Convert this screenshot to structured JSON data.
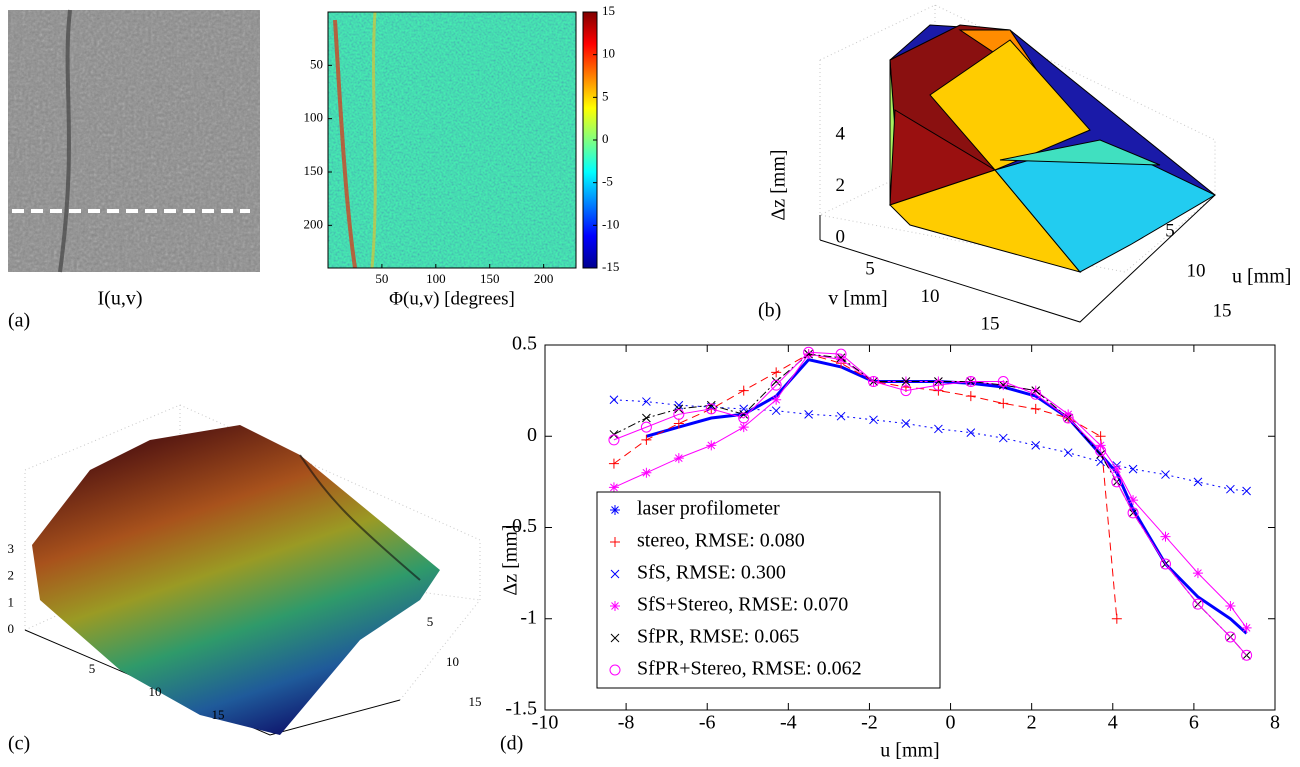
{
  "chart_data": [
    {
      "type": "image",
      "panel": "(a)",
      "xlabel": "I(u,v)"
    },
    {
      "type": "heatmap",
      "xlabel": "Φ(u,v) [degrees]",
      "xlim": [
        0,
        230
      ],
      "ylim": [
        240,
        0
      ],
      "xticks": [
        50,
        100,
        150,
        200
      ],
      "yticks": [
        50,
        100,
        150,
        200
      ],
      "colormap": "jet",
      "clim": [
        -15,
        15
      ],
      "cticks": [
        -15,
        -10,
        -5,
        0,
        5,
        10,
        15
      ]
    },
    {
      "type": "surface3d",
      "panel": "(b)",
      "xlabel": "u [mm]",
      "ylabel": "v [mm]",
      "zlabel": "Δz [mm]",
      "uticks": [
        5,
        10,
        15
      ],
      "vticks": [
        5,
        10,
        15
      ],
      "zticks": [
        0,
        2,
        4
      ]
    },
    {
      "type": "surface3d",
      "panel": "(c)",
      "uticks": [
        5,
        10,
        15
      ],
      "vticks": [
        5,
        10,
        15
      ],
      "zticks": [
        0,
        1,
        2,
        3
      ]
    },
    {
      "type": "line",
      "panel": "(d)",
      "xlabel": "u [mm]",
      "ylabel": "Δz [mm]",
      "xlim": [
        -10,
        8
      ],
      "ylim": [
        -1.5,
        0.5
      ],
      "xticks": [
        -10,
        -8,
        -6,
        -4,
        -2,
        0,
        2,
        4,
        6,
        8
      ],
      "yticks": [
        -1.5,
        -1,
        -0.5,
        0,
        0.5
      ],
      "legend": "lower left",
      "x": [
        -8.3,
        -7.5,
        -6.7,
        -5.9,
        -5.1,
        -4.3,
        -3.5,
        -2.7,
        -1.9,
        -1.1,
        -0.3,
        0.5,
        1.3,
        2.1,
        2.9,
        3.7,
        4.1,
        4.5,
        5.3,
        6.1,
        6.9,
        7.3
      ],
      "series": [
        {
          "name": "laser profilometer",
          "color": "#0000ff",
          "marker": "*",
          "linestyle": "solid",
          "linewidth": 3,
          "show_markers": false,
          "values": [
            null,
            0.0,
            0.05,
            0.1,
            0.12,
            0.22,
            0.42,
            0.38,
            0.3,
            0.3,
            0.3,
            0.29,
            0.27,
            0.22,
            0.1,
            -0.1,
            -0.2,
            -0.4,
            -0.7,
            -0.88,
            -1.0,
            -1.08
          ]
        },
        {
          "name": "stereo, RMSE: 0.080",
          "color": "#ff0000",
          "marker": "+",
          "linestyle": "dashed",
          "linewidth": 1,
          "show_markers": true,
          "values": [
            -0.15,
            -0.02,
            0.07,
            0.15,
            0.25,
            0.35,
            0.45,
            0.4,
            0.3,
            0.27,
            0.25,
            0.22,
            0.18,
            0.15,
            0.1,
            0.0,
            -1.0,
            null,
            null,
            null,
            null,
            null
          ]
        },
        {
          "name": "SfS, RMSE: 0.300",
          "color": "#0000ff",
          "marker": "x",
          "linestyle": "dotted",
          "linewidth": 1,
          "show_markers": true,
          "values": [
            0.2,
            0.19,
            0.17,
            0.16,
            0.15,
            0.14,
            0.12,
            0.11,
            0.09,
            0.07,
            0.04,
            0.02,
            -0.01,
            -0.05,
            -0.09,
            -0.14,
            -0.16,
            -0.18,
            -0.21,
            -0.25,
            -0.29,
            -0.3
          ]
        },
        {
          "name": "SfS+Stereo, RMSE: 0.070",
          "color": "#ff00ff",
          "marker": "*",
          "linestyle": "solid",
          "linewidth": 1,
          "show_markers": true,
          "values": [
            -0.28,
            -0.2,
            -0.12,
            -0.05,
            0.05,
            0.2,
            0.45,
            0.42,
            0.3,
            0.3,
            0.3,
            0.3,
            0.28,
            0.25,
            0.12,
            -0.05,
            -0.18,
            -0.35,
            -0.55,
            -0.75,
            -0.93,
            -1.05
          ]
        },
        {
          "name": "SfPR, RMSE: 0.065",
          "color": "#000000",
          "marker": "x",
          "linestyle": "dashdot",
          "linewidth": 1,
          "show_markers": true,
          "values": [
            0.01,
            0.1,
            0.15,
            0.17,
            0.12,
            0.3,
            0.45,
            0.43,
            0.3,
            0.3,
            0.3,
            0.3,
            0.28,
            0.25,
            0.1,
            -0.1,
            -0.25,
            -0.42,
            -0.7,
            -0.92,
            -1.1,
            -1.2
          ]
        },
        {
          "name": "SfPR+Stereo, RMSE: 0.062",
          "color": "#ff00ff",
          "marker": "o",
          "linestyle": "solid",
          "linewidth": 1,
          "show_markers": true,
          "values": [
            -0.02,
            0.05,
            0.12,
            0.15,
            0.1,
            0.28,
            0.46,
            0.45,
            0.3,
            0.25,
            0.28,
            0.3,
            0.3,
            0.23,
            0.1,
            -0.08,
            -0.25,
            -0.42,
            -0.7,
            -0.92,
            -1.1,
            -1.2
          ]
        }
      ]
    }
  ]
}
